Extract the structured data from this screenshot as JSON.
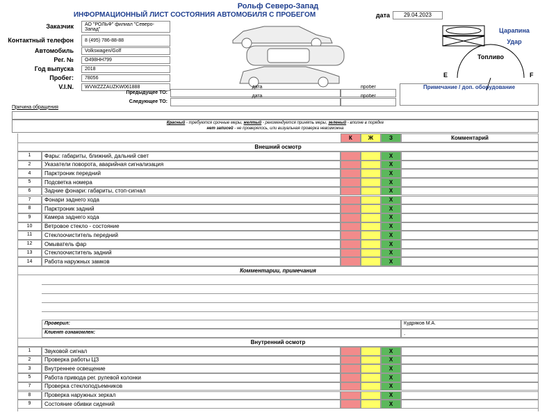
{
  "header": {
    "company": "Рольф Северо-Запад",
    "title": "ИНФОРМАЦИОННЫЙ ЛИСТ СОСТОЯНИЯ АВТОМОБИЛЯ С ПРОБЕГОМ",
    "date_label": "дата",
    "date": "29.04.2023"
  },
  "fields": [
    {
      "label": "Заказчик",
      "value": "АО \"РОЛЬФ\" филиал \"Северо-Запад\""
    },
    {
      "label": "Контактный телефон",
      "value": "8 (495) 786-88-88"
    },
    {
      "label": "Автомобиль",
      "value": "Volkswagen/Golf"
    },
    {
      "label": "Рег. №",
      "value": "О498НН799"
    },
    {
      "label": "Год выпуска",
      "value": "2018"
    },
    {
      "label": "Пробег:",
      "value": "78056"
    },
    {
      "label": "V.I.N.",
      "value": "WVWZZZAUZKW061888"
    }
  ],
  "service": [
    {
      "label": "Предыдущее ТО:",
      "date_label": "дата",
      "mileage_label": "пробег"
    },
    {
      "label": "Следующее ТО:",
      "date_label": "дата",
      "mileage_label": "пробег"
    }
  ],
  "damage_legend": {
    "scratch": "Царапина",
    "dent": "Удар"
  },
  "fuel": {
    "label": "Топливо",
    "empty": "E",
    "full": "F"
  },
  "note_label": "Примечание / доп. оборудование",
  "reason_label": "Причина обращения",
  "legend": {
    "red": "Красный",
    "red_text": " - требуются срочные меры, ",
    "yellow": "желтый",
    "yellow_text": " - рекомендуется принять меры, ",
    "green": "зеленый",
    "green_text": " - вполне в порядке",
    "none": "нет записей",
    "none_text": " - не проверялось, или визуальная проверка невозможна"
  },
  "table": {
    "columns": [
      "К",
      "Ж",
      "З",
      "Комментарий"
    ],
    "exterior": {
      "title": "Внешний осмотр",
      "rows": [
        {
          "no": "1",
          "name": "Фары: габариты, ближний, дальний свет",
          "mark": "X"
        },
        {
          "no": "2",
          "name": "Указатели поворота, аварийная сигнализация",
          "mark": "X"
        },
        {
          "no": "4",
          "name": "Парктроник передний",
          "mark": "X"
        },
        {
          "no": "5",
          "name": "Подсветка номера",
          "mark": "X"
        },
        {
          "no": "6",
          "name": "Задние фонари: габариты, стоп-сигнал",
          "mark": "X"
        },
        {
          "no": "7",
          "name": "Фонари заднего хода",
          "mark": "X"
        },
        {
          "no": "8",
          "name": "Парктроник задний",
          "mark": "X"
        },
        {
          "no": "9",
          "name": "Камера заднего хода",
          "mark": "X"
        },
        {
          "no": "10",
          "name": "Ветровое стекло - состояние",
          "mark": "X"
        },
        {
          "no": "11",
          "name": "Стеклоочиститель передний",
          "mark": "X"
        },
        {
          "no": "12",
          "name": "Омыватель фар",
          "mark": "X"
        },
        {
          "no": "13",
          "name": "Стеклоочиститель задний",
          "mark": "X"
        },
        {
          "no": "14",
          "name": "Работа наружных замков",
          "mark": "X"
        }
      ]
    },
    "comments": {
      "title": "Комментарии, примечания"
    },
    "checked": {
      "label": "Проверил:",
      "value": "Кудряков М.А."
    },
    "client": {
      "label": "Клиент ознакомлен:",
      "value": "."
    },
    "interior": {
      "title": "Внутренний осмотр",
      "rows": [
        {
          "no": "1",
          "name": "Звуковой сигнал",
          "mark": "X"
        },
        {
          "no": "2",
          "name": "Проверка работы ЦЗ",
          "mark": "X"
        },
        {
          "no": "3",
          "name": "Внутреннее освещение",
          "mark": "X"
        },
        {
          "no": "5",
          "name": "Работа привода рег. рулевой колонки",
          "mark": "X"
        },
        {
          "no": "7",
          "name": "Проверка стеклоподъемников",
          "mark": "X"
        },
        {
          "no": "8",
          "name": "Проверка наружных зеркал",
          "mark": "X"
        },
        {
          "no": "9",
          "name": "Состояние обивки сидений",
          "mark": "X"
        }
      ]
    }
  }
}
